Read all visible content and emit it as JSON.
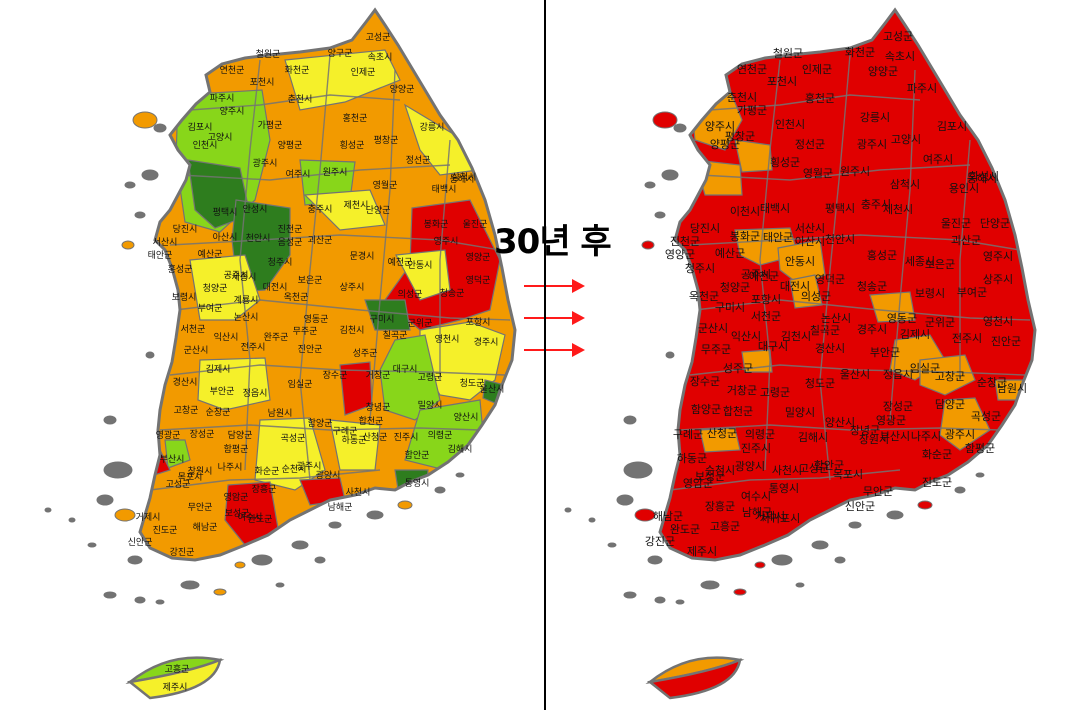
{
  "caption": "30년 후",
  "colors": {
    "dark_green": "#2e7d1e",
    "light_green": "#88d61a",
    "yellow": "#f5f02a",
    "orange": "#f29a00",
    "red": "#e00000",
    "border": "#737373"
  },
  "arrow_count": 3,
  "left_map": {
    "regions": [
      {
        "label": "고성군",
        "color": "orange"
      },
      {
        "label": "철원군",
        "color": "orange"
      },
      {
        "label": "양구군",
        "color": "yellow"
      },
      {
        "label": "속초시",
        "color": "yellow"
      },
      {
        "label": "연천군",
        "color": "orange"
      },
      {
        "label": "화천군",
        "color": "yellow"
      },
      {
        "label": "인제군",
        "color": "yellow"
      },
      {
        "label": "양양군",
        "color": "orange"
      },
      {
        "label": "포천시",
        "color": "yellow"
      },
      {
        "label": "파주시",
        "color": "light_green"
      },
      {
        "label": "양주시",
        "color": "light_green"
      },
      {
        "label": "춘천시",
        "color": "yellow"
      },
      {
        "label": "홍천군",
        "color": "orange"
      },
      {
        "label": "강릉시",
        "color": "yellow"
      },
      {
        "label": "김포시",
        "color": "light_green"
      },
      {
        "label": "고양시",
        "color": "light_green"
      },
      {
        "label": "가평군",
        "color": "yellow"
      },
      {
        "label": "평창군",
        "color": "orange"
      },
      {
        "label": "인천시",
        "color": "dark_green"
      },
      {
        "label": "광주시",
        "color": "light_green"
      },
      {
        "label": "양평군",
        "color": "orange"
      },
      {
        "label": "횡성군",
        "color": "orange"
      },
      {
        "label": "정선군",
        "color": "orange"
      },
      {
        "label": "동해시",
        "color": "orange"
      },
      {
        "label": "원주시",
        "color": "light_green"
      },
      {
        "label": "여주시",
        "color": "yellow"
      },
      {
        "label": "영월군",
        "color": "orange"
      },
      {
        "label": "삼척시",
        "color": "orange"
      },
      {
        "label": "태백시",
        "color": "orange"
      },
      {
        "label": "평택시",
        "color": "dark_green"
      },
      {
        "label": "안성시",
        "color": "light_green"
      },
      {
        "label": "충주시",
        "color": "yellow"
      },
      {
        "label": "제천시",
        "color": "yellow"
      },
      {
        "label": "단양군",
        "color": "orange"
      },
      {
        "label": "울진군",
        "color": "red"
      },
      {
        "label": "봉화군",
        "color": "red"
      },
      {
        "label": "당진시",
        "color": "yellow"
      },
      {
        "label": "서산시",
        "color": "yellow"
      },
      {
        "label": "아산시",
        "color": "light_green"
      },
      {
        "label": "천안시",
        "color": "dark_green"
      },
      {
        "label": "진천군",
        "color": "dark_green"
      },
      {
        "label": "음성군",
        "color": "light_green"
      },
      {
        "label": "괴산군",
        "color": "orange"
      },
      {
        "label": "영주시",
        "color": "orange"
      },
      {
        "label": "영양군",
        "color": "red"
      },
      {
        "label": "태안군",
        "color": "orange"
      },
      {
        "label": "예산군",
        "color": "yellow"
      },
      {
        "label": "홍성군",
        "color": "orange"
      },
      {
        "label": "세종시",
        "color": "dark_green"
      },
      {
        "label": "청주시",
        "color": "dark_green"
      },
      {
        "label": "보은군",
        "color": "orange"
      },
      {
        "label": "문경시",
        "color": "orange"
      },
      {
        "label": "예천군",
        "color": "orange"
      },
      {
        "label": "안동시",
        "color": "yellow"
      },
      {
        "label": "영덕군",
        "color": "red"
      },
      {
        "label": "청양군",
        "color": "orange"
      },
      {
        "label": "공주시",
        "color": "yellow"
      },
      {
        "label": "대전시",
        "color": "dark_green"
      },
      {
        "label": "옥천군",
        "color": "orange"
      },
      {
        "label": "상주시",
        "color": "orange"
      },
      {
        "label": "의성군",
        "color": "red"
      },
      {
        "label": "청송군",
        "color": "red"
      },
      {
        "label": "보령시",
        "color": "orange"
      },
      {
        "label": "부여군",
        "color": "orange"
      },
      {
        "label": "계룡시",
        "color": "light_green"
      },
      {
        "label": "논산시",
        "color": "orange"
      },
      {
        "label": "영동군",
        "color": "orange"
      },
      {
        "label": "구미시",
        "color": "dark_green"
      },
      {
        "label": "군위군",
        "color": "red"
      },
      {
        "label": "포항시",
        "color": "yellow"
      },
      {
        "label": "서천군",
        "color": "orange"
      },
      {
        "label": "익산시",
        "color": "orange"
      },
      {
        "label": "완주군",
        "color": "orange"
      },
      {
        "label": "무주군",
        "color": "orange"
      },
      {
        "label": "김천시",
        "color": "orange"
      },
      {
        "label": "칠곡군",
        "color": "light_green"
      },
      {
        "label": "영천시",
        "color": "orange"
      },
      {
        "label": "경주시",
        "color": "yellow"
      },
      {
        "label": "군산시",
        "color": "orange"
      },
      {
        "label": "김제시",
        "color": "orange"
      },
      {
        "label": "전주시",
        "color": "light_green"
      },
      {
        "label": "진안군",
        "color": "orange"
      },
      {
        "label": "성주군",
        "color": "orange"
      },
      {
        "label": "대구시",
        "color": "light_green"
      },
      {
        "label": "경산시",
        "color": "light_green"
      },
      {
        "label": "부안군",
        "color": "orange"
      },
      {
        "label": "정읍시",
        "color": "orange"
      },
      {
        "label": "임실군",
        "color": "orange"
      },
      {
        "label": "장수군",
        "color": "orange"
      },
      {
        "label": "거창군",
        "color": "orange"
      },
      {
        "label": "고령군",
        "color": "orange"
      },
      {
        "label": "청도군",
        "color": "orange"
      },
      {
        "label": "울산시",
        "color": "dark_green"
      },
      {
        "label": "고창군",
        "color": "orange"
      },
      {
        "label": "순창군",
        "color": "orange"
      },
      {
        "label": "남원시",
        "color": "orange"
      },
      {
        "label": "함양군",
        "color": "orange"
      },
      {
        "label": "합천군",
        "color": "red"
      },
      {
        "label": "창녕군",
        "color": "orange"
      },
      {
        "label": "밀양시",
        "color": "orange"
      },
      {
        "label": "양산시",
        "color": "yellow"
      },
      {
        "label": "영광군",
        "color": "orange"
      },
      {
        "label": "장성군",
        "color": "orange"
      },
      {
        "label": "담양군",
        "color": "orange"
      },
      {
        "label": "곡성군",
        "color": "orange"
      },
      {
        "label": "구례군",
        "color": "yellow"
      },
      {
        "label": "산청군",
        "color": "orange"
      },
      {
        "label": "의령군",
        "color": "orange"
      },
      {
        "label": "김해시",
        "color": "light_green"
      },
      {
        "label": "부산시",
        "color": "light_green"
      },
      {
        "label": "함평군",
        "color": "red"
      },
      {
        "label": "광주시",
        "color": "light_green"
      },
      {
        "label": "하동군",
        "color": "orange"
      },
      {
        "label": "진주시",
        "color": "yellow"
      },
      {
        "label": "함안군",
        "color": "orange"
      },
      {
        "label": "창원시",
        "color": "light_green"
      },
      {
        "label": "나주시",
        "color": "orange"
      },
      {
        "label": "화순군",
        "color": "orange"
      },
      {
        "label": "순천시",
        "color": "yellow"
      },
      {
        "label": "광양시",
        "color": "yellow"
      },
      {
        "label": "사천시",
        "color": "yellow"
      },
      {
        "label": "고성군",
        "color": "orange"
      },
      {
        "label": "목포시",
        "color": "orange"
      },
      {
        "label": "무안군",
        "color": "orange"
      },
      {
        "label": "영암군",
        "color": "orange"
      },
      {
        "label": "보성군",
        "color": "orange"
      },
      {
        "label": "장흥군",
        "color": "orange"
      },
      {
        "label": "여수시",
        "color": "orange"
      },
      {
        "label": "남해군",
        "color": "red"
      },
      {
        "label": "통영시",
        "color": "orange"
      },
      {
        "label": "거제시",
        "color": "dark_green"
      },
      {
        "label": "신안군",
        "color": "red"
      },
      {
        "label": "진도군",
        "color": "orange"
      },
      {
        "label": "해남군",
        "color": "orange"
      },
      {
        "label": "강진군",
        "color": "orange"
      },
      {
        "label": "완도군",
        "color": "orange"
      },
      {
        "label": "고흥군",
        "color": "red"
      },
      {
        "label": "제주시",
        "color": "light_green"
      },
      {
        "label": "서귀포시",
        "color": "yellow"
      }
    ]
  },
  "right_map": {
    "regions": [
      {
        "label": "고성군",
        "color": "red"
      },
      {
        "label": "철원군",
        "color": "red"
      },
      {
        "label": "화천군",
        "color": "red"
      },
      {
        "label": "속초시",
        "color": "red"
      },
      {
        "label": "연천군",
        "color": "red"
      },
      {
        "label": "인제군",
        "color": "red"
      },
      {
        "label": "양양군",
        "color": "red"
      },
      {
        "label": "파주시",
        "color": "orange"
      },
      {
        "label": "포천시",
        "color": "red"
      },
      {
        "label": "춘천시",
        "color": "red"
      },
      {
        "label": "가평군",
        "color": "red"
      },
      {
        "label": "홍천군",
        "color": "red"
      },
      {
        "label": "강릉시",
        "color": "red"
      },
      {
        "label": "김포시",
        "color": "red"
      },
      {
        "label": "양주시",
        "color": "orange"
      },
      {
        "label": "평창군",
        "color": "red"
      },
      {
        "label": "인천시",
        "color": "red"
      },
      {
        "label": "고양시",
        "color": "red"
      },
      {
        "label": "양평군",
        "color": "red"
      },
      {
        "label": "횡성군",
        "color": "red"
      },
      {
        "label": "정선군",
        "color": "red"
      },
      {
        "label": "광주시",
        "color": "orange"
      },
      {
        "label": "여주시",
        "color": "red"
      },
      {
        "label": "동해시",
        "color": "red"
      },
      {
        "label": "원주시",
        "color": "red"
      },
      {
        "label": "영월군",
        "color": "red"
      },
      {
        "label": "삼척시",
        "color": "red"
      },
      {
        "label": "화성시",
        "color": "orange"
      },
      {
        "label": "용인시",
        "color": "red"
      },
      {
        "label": "이천시",
        "color": "red"
      },
      {
        "label": "태백시",
        "color": "red"
      },
      {
        "label": "평택시",
        "color": "red"
      },
      {
        "label": "충주시",
        "color": "red"
      },
      {
        "label": "제천시",
        "color": "red"
      },
      {
        "label": "단양군",
        "color": "red"
      },
      {
        "label": "울진군",
        "color": "red"
      },
      {
        "label": "당진시",
        "color": "red"
      },
      {
        "label": "진천군",
        "color": "red"
      },
      {
        "label": "봉화군",
        "color": "red"
      },
      {
        "label": "태안군",
        "color": "red"
      },
      {
        "label": "서산시",
        "color": "red"
      },
      {
        "label": "아산시",
        "color": "orange"
      },
      {
        "label": "천안시",
        "color": "orange"
      },
      {
        "label": "괴산군",
        "color": "red"
      },
      {
        "label": "영주시",
        "color": "red"
      },
      {
        "label": "영양군",
        "color": "red"
      },
      {
        "label": "예산군",
        "color": "red"
      },
      {
        "label": "청주시",
        "color": "orange"
      },
      {
        "label": "예천군",
        "color": "red"
      },
      {
        "label": "안동시",
        "color": "red"
      },
      {
        "label": "영덕군",
        "color": "red"
      },
      {
        "label": "홍성군",
        "color": "red"
      },
      {
        "label": "세종시",
        "color": "orange"
      },
      {
        "label": "보은군",
        "color": "red"
      },
      {
        "label": "상주시",
        "color": "red"
      },
      {
        "label": "청양군",
        "color": "red"
      },
      {
        "label": "공주시",
        "color": "red"
      },
      {
        "label": "대전시",
        "color": "orange"
      },
      {
        "label": "의성군",
        "color": "red"
      },
      {
        "label": "청송군",
        "color": "red"
      },
      {
        "label": "보령시",
        "color": "red"
      },
      {
        "label": "부여군",
        "color": "red"
      },
      {
        "label": "옥천군",
        "color": "red"
      },
      {
        "label": "구미시",
        "color": "orange"
      },
      {
        "label": "포항시",
        "color": "red"
      },
      {
        "label": "서천군",
        "color": "red"
      },
      {
        "label": "논산시",
        "color": "red"
      },
      {
        "label": "영동군",
        "color": "red"
      },
      {
        "label": "군위군",
        "color": "red"
      },
      {
        "label": "영천시",
        "color": "red"
      },
      {
        "label": "군산시",
        "color": "red"
      },
      {
        "label": "익산시",
        "color": "red"
      },
      {
        "label": "김천시",
        "color": "red"
      },
      {
        "label": "칠곡군",
        "color": "red"
      },
      {
        "label": "경주시",
        "color": "red"
      },
      {
        "label": "김제시",
        "color": "red"
      },
      {
        "label": "전주시",
        "color": "orange"
      },
      {
        "label": "진안군",
        "color": "red"
      },
      {
        "label": "무주군",
        "color": "red"
      },
      {
        "label": "성주군",
        "color": "red"
      },
      {
        "label": "대구시",
        "color": "orange"
      },
      {
        "label": "경산시",
        "color": "orange"
      },
      {
        "label": "부안군",
        "color": "red"
      },
      {
        "label": "임실군",
        "color": "red"
      },
      {
        "label": "장수군",
        "color": "red"
      },
      {
        "label": "거창군",
        "color": "red"
      },
      {
        "label": "고령군",
        "color": "red"
      },
      {
        "label": "청도군",
        "color": "red"
      },
      {
        "label": "울산시",
        "color": "orange"
      },
      {
        "label": "정읍시",
        "color": "red"
      },
      {
        "label": "고창군",
        "color": "red"
      },
      {
        "label": "순창군",
        "color": "red"
      },
      {
        "label": "남원시",
        "color": "red"
      },
      {
        "label": "함양군",
        "color": "red"
      },
      {
        "label": "합천군",
        "color": "red"
      },
      {
        "label": "밀양시",
        "color": "red"
      },
      {
        "label": "양산시",
        "color": "orange"
      },
      {
        "label": "영광군",
        "color": "red"
      },
      {
        "label": "장성군",
        "color": "red"
      },
      {
        "label": "담양군",
        "color": "red"
      },
      {
        "label": "곡성군",
        "color": "red"
      },
      {
        "label": "구례군",
        "color": "red"
      },
      {
        "label": "산청군",
        "color": "red"
      },
      {
        "label": "의령군",
        "color": "red"
      },
      {
        "label": "김해시",
        "color": "orange"
      },
      {
        "label": "창녕군",
        "color": "red"
      },
      {
        "label": "부산시",
        "color": "orange"
      },
      {
        "label": "광주시",
        "color": "orange"
      },
      {
        "label": "함평군",
        "color": "red"
      },
      {
        "label": "하동군",
        "color": "red"
      },
      {
        "label": "진주시",
        "color": "red"
      },
      {
        "label": "함안군",
        "color": "red"
      },
      {
        "label": "창원시",
        "color": "orange"
      },
      {
        "label": "나주시",
        "color": "red"
      },
      {
        "label": "화순군",
        "color": "red"
      },
      {
        "label": "순천시",
        "color": "red"
      },
      {
        "label": "광양시",
        "color": "red"
      },
      {
        "label": "사천시",
        "color": "red"
      },
      {
        "label": "고성군",
        "color": "red"
      },
      {
        "label": "목포시",
        "color": "red"
      },
      {
        "label": "무안군",
        "color": "red"
      },
      {
        "label": "영암군",
        "color": "red"
      },
      {
        "label": "보성군",
        "color": "red"
      },
      {
        "label": "장흥군",
        "color": "red"
      },
      {
        "label": "여수시",
        "color": "red"
      },
      {
        "label": "남해군",
        "color": "red"
      },
      {
        "label": "통영시",
        "color": "red"
      },
      {
        "label": "거제시",
        "color": "red"
      },
      {
        "label": "신안군",
        "color": "red"
      },
      {
        "label": "진도군",
        "color": "red"
      },
      {
        "label": "해남군",
        "color": "red"
      },
      {
        "label": "강진군",
        "color": "red"
      },
      {
        "label": "완도군",
        "color": "red"
      },
      {
        "label": "고흥군",
        "color": "red"
      },
      {
        "label": "제주시",
        "color": "orange"
      },
      {
        "label": "서귀포시",
        "color": "red"
      }
    ]
  }
}
